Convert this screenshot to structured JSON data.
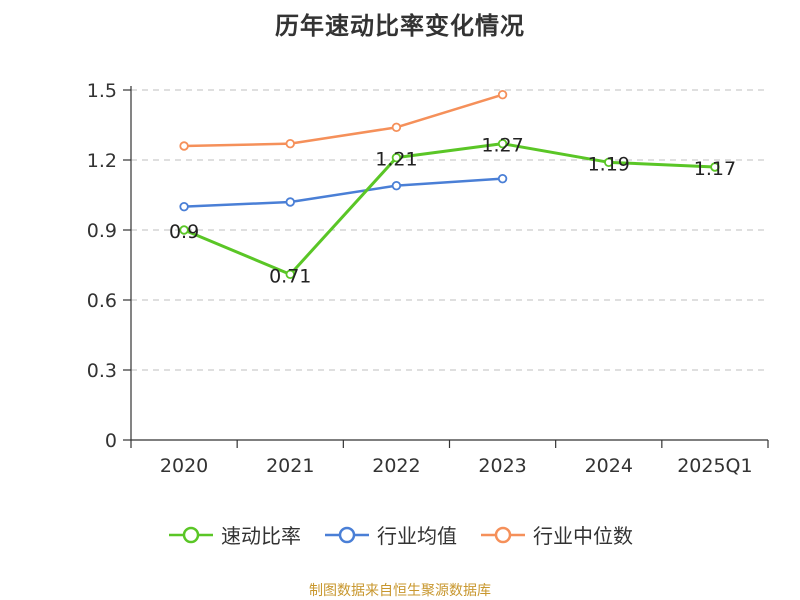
{
  "chart_data": {
    "type": "line",
    "title": "历年速动比率变化情况",
    "categories": [
      "2020",
      "2021",
      "2022",
      "2023",
      "2024",
      "2025Q1"
    ],
    "ylim": [
      0,
      1.5
    ],
    "yticks": [
      "0",
      "0.3",
      "0.6",
      "0.9",
      "1.2",
      "1.5"
    ],
    "grid": true,
    "legend_position": "bottom",
    "series": [
      {
        "name": "速动比率",
        "color": "#5ac626",
        "values": [
          0.9,
          0.71,
          1.21,
          1.27,
          1.19,
          1.17
        ],
        "labels": [
          "0.9",
          "0.71",
          "1.21",
          "1.27",
          "1.19",
          "1.17"
        ]
      },
      {
        "name": "行业均值",
        "color": "#4a7fd6",
        "values": [
          1.0,
          1.02,
          1.09,
          1.12,
          null,
          null
        ]
      },
      {
        "name": "行业中位数",
        "color": "#f5905a",
        "values": [
          1.26,
          1.27,
          1.34,
          1.48,
          null,
          null
        ]
      }
    ]
  },
  "source": "制图数据来自恒生聚源数据库"
}
